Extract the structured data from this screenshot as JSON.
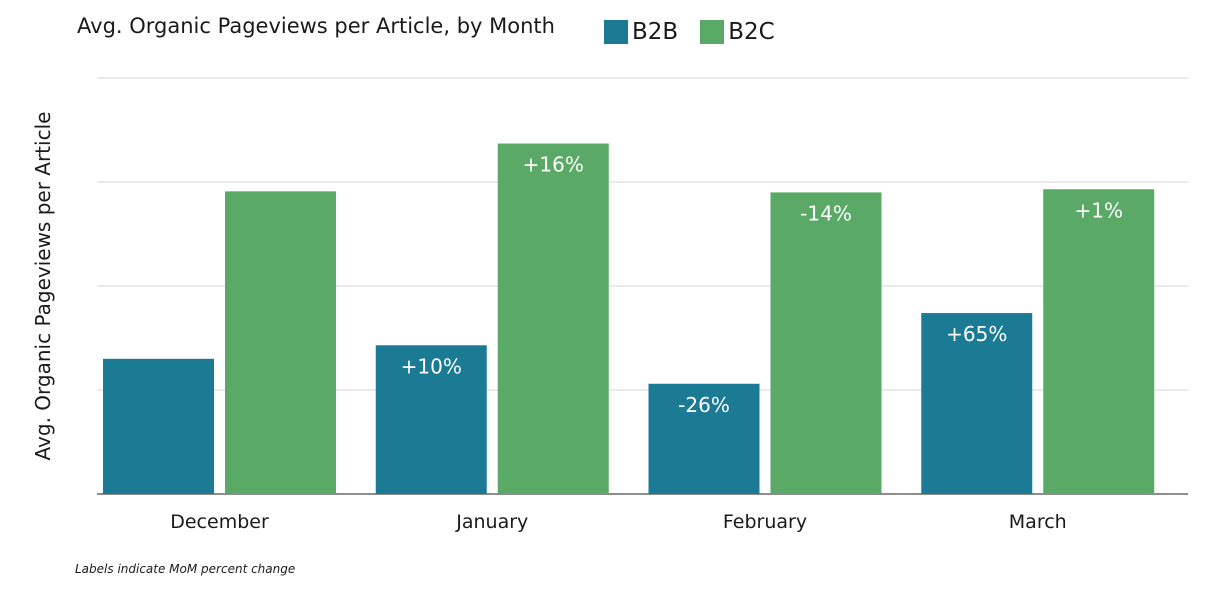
{
  "chart_data": {
    "type": "bar",
    "title": "Avg. Organic Pageviews per Article, by Month",
    "ylabel": "Avg. Organic Pageviews per Article",
    "xlabel": "",
    "categories": [
      "December",
      "January",
      "February",
      "March"
    ],
    "series": [
      {
        "name": "B2B",
        "color": "#1b7b94",
        "values": [
          1.3,
          1.43,
          1.06,
          1.74
        ],
        "labels": [
          "",
          "+10%",
          "-26%",
          "+65%"
        ]
      },
      {
        "name": "B2C",
        "color": "#5aa966",
        "values": [
          2.91,
          3.37,
          2.9,
          2.93
        ],
        "labels": [
          "",
          "+16%",
          "-14%",
          "+1%"
        ]
      }
    ],
    "ylim": [
      0,
      4
    ],
    "y_tick_labels_shown": false,
    "grid": true,
    "legend_position": "top"
  },
  "footnote": "Labels indicate MoM percent change"
}
